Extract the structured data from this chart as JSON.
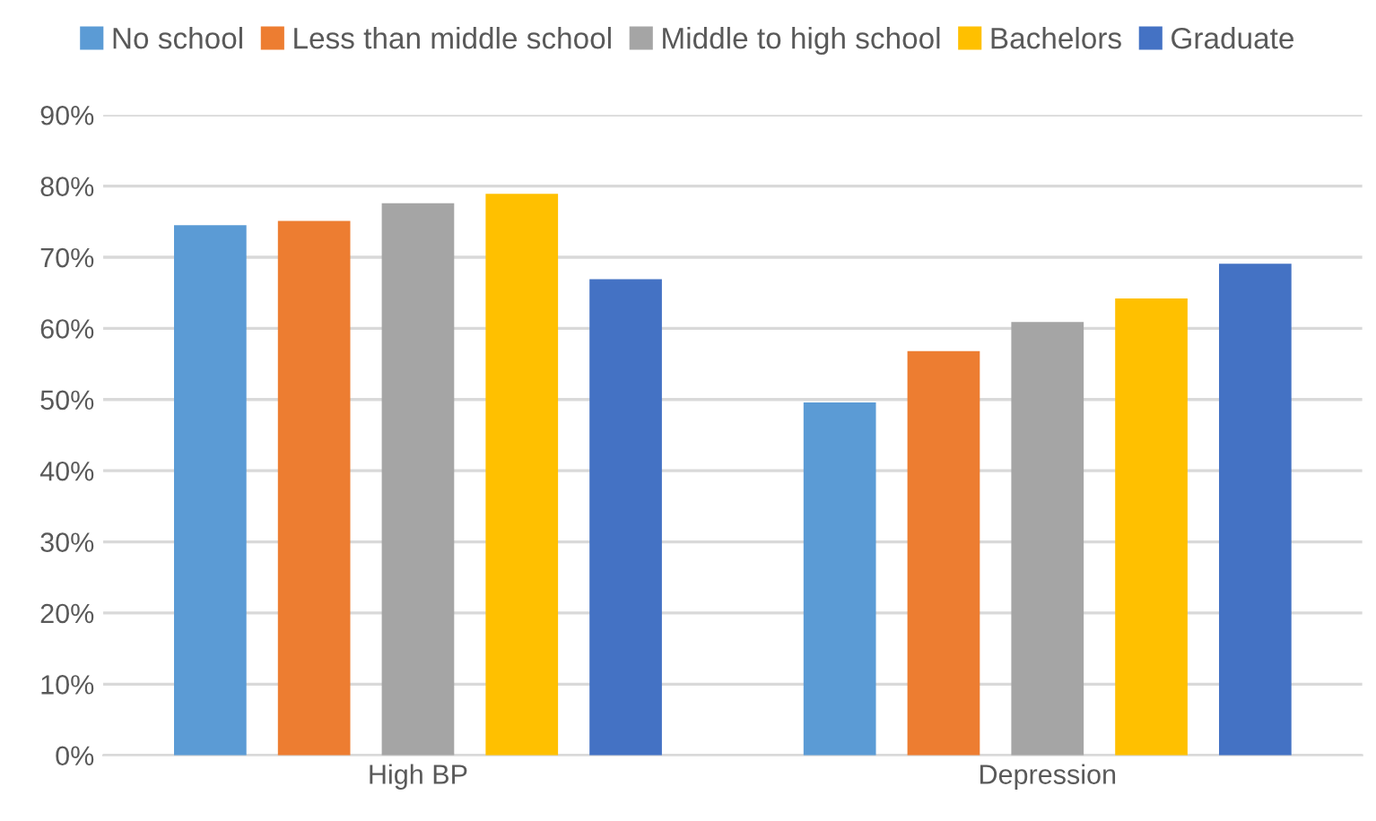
{
  "chart_data": {
    "type": "bar",
    "categories": [
      "High BP",
      "Depression"
    ],
    "series": [
      {
        "name": "No school",
        "color": "#5b9bd5",
        "values": [
          74.5,
          49.6
        ]
      },
      {
        "name": "Less than middle school",
        "color": "#ed7d31",
        "values": [
          75.1,
          56.8
        ]
      },
      {
        "name": "Middle to high school",
        "color": "#a5a5a5",
        "values": [
          77.6,
          60.9
        ]
      },
      {
        "name": "Bachelors",
        "color": "#ffc000",
        "values": [
          78.9,
          64.2
        ]
      },
      {
        "name": "Graduate",
        "color": "#4472c4",
        "values": [
          66.9,
          69.1
        ]
      }
    ],
    "ylim": [
      0,
      90
    ],
    "yticks": [
      {
        "value": 0,
        "label": "0%"
      },
      {
        "value": 10,
        "label": "10%"
      },
      {
        "value": 20,
        "label": "20%"
      },
      {
        "value": 30,
        "label": "30%"
      },
      {
        "value": 40,
        "label": "40%"
      },
      {
        "value": 50,
        "label": "50%"
      },
      {
        "value": 60,
        "label": "60%"
      },
      {
        "value": 70,
        "label": "70%"
      },
      {
        "value": 80,
        "label": "80%"
      },
      {
        "value": 90,
        "label": "90%"
      }
    ],
    "grid": "y",
    "legend": "top"
  }
}
